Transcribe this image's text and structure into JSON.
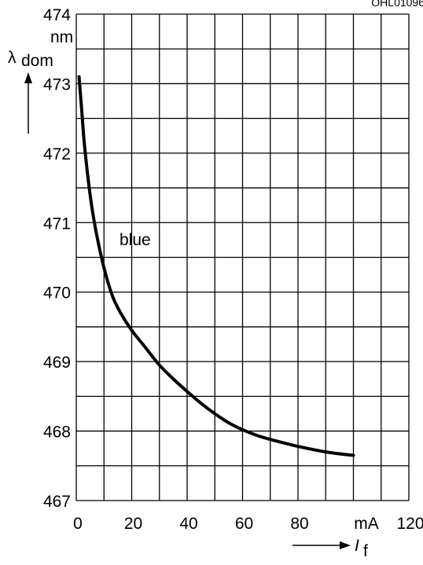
{
  "chart_data": {
    "type": "line",
    "code": "OHL01096",
    "ylabel": {
      "symbol": "λ",
      "subscript": "dom"
    },
    "yunit": "nm",
    "xlabel": {
      "symbol": "I",
      "subscript": "f"
    },
    "xunit": "mA",
    "xlim": [
      0,
      120
    ],
    "ylim": [
      467,
      474
    ],
    "x_ticks": [
      "0",
      "20",
      "40",
      "60",
      "80",
      "120"
    ],
    "y_ticks": [
      "467",
      "468",
      "469",
      "470",
      "471",
      "472",
      "473",
      "474"
    ],
    "grid": true,
    "series": [
      {
        "name": "blue",
        "x": [
          1,
          2,
          3,
          5,
          7,
          10,
          13,
          16,
          20,
          25,
          30,
          35,
          40,
          45,
          50,
          55,
          60,
          65,
          70,
          80,
          90,
          100
        ],
        "y": [
          473.1,
          472.6,
          472.1,
          471.4,
          470.9,
          470.35,
          469.95,
          469.7,
          469.45,
          469.2,
          468.95,
          468.75,
          468.57,
          468.4,
          468.25,
          468.12,
          468.02,
          467.94,
          467.88,
          467.78,
          467.7,
          467.65
        ]
      }
    ]
  }
}
